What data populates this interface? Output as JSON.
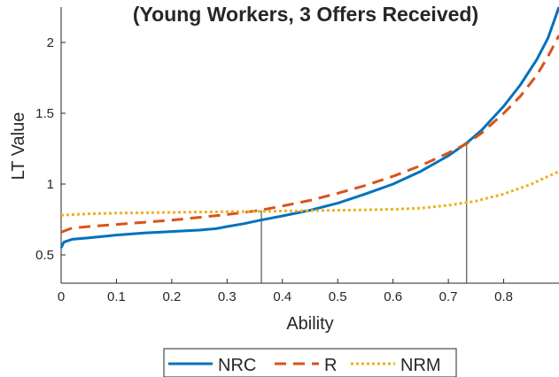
{
  "chart_data": {
    "type": "line",
    "title": "(Young Workers, 3 Offers Received)",
    "xlabel": "Ability",
    "ylabel": "LT Value",
    "xlim": [
      0,
      0.9
    ],
    "ylim": [
      0.3,
      2.25
    ],
    "xticks": [
      0,
      0.1,
      0.2,
      0.3,
      0.4,
      0.5,
      0.6,
      0.7,
      0.8
    ],
    "xtick_labels": [
      "0",
      "0.1",
      "0.2",
      "0.3",
      "0.4",
      "0.5",
      "0.6",
      "0.7",
      "0.8"
    ],
    "yticks": [
      0.5,
      1,
      1.5,
      2
    ],
    "ytick_labels": [
      "0.5",
      "1",
      "1.5",
      "2"
    ],
    "grid": false,
    "legend_position": "bottom",
    "series": [
      {
        "name": "NRC",
        "color": "#0072BD",
        "style": "solid",
        "x": [
          0,
          0.005,
          0.02,
          0.05,
          0.1,
          0.15,
          0.2,
          0.25,
          0.28,
          0.3,
          0.33,
          0.36,
          0.4,
          0.45,
          0.5,
          0.55,
          0.6,
          0.65,
          0.7,
          0.733,
          0.76,
          0.8,
          0.83,
          0.86,
          0.88,
          0.9
        ],
        "y": [
          0.55,
          0.59,
          0.61,
          0.62,
          0.64,
          0.655,
          0.665,
          0.675,
          0.685,
          0.7,
          0.72,
          0.745,
          0.775,
          0.815,
          0.865,
          0.93,
          1.0,
          1.09,
          1.2,
          1.29,
          1.38,
          1.55,
          1.7,
          1.88,
          2.03,
          2.25
        ]
      },
      {
        "name": "R",
        "color": "#D95319",
        "style": "dashed",
        "x": [
          0,
          0.02,
          0.05,
          0.1,
          0.15,
          0.2,
          0.25,
          0.3,
          0.36,
          0.4,
          0.45,
          0.5,
          0.55,
          0.6,
          0.65,
          0.7,
          0.733,
          0.76,
          0.8,
          0.83,
          0.86,
          0.88,
          0.9
        ],
        "y": [
          0.66,
          0.69,
          0.7,
          0.715,
          0.73,
          0.745,
          0.765,
          0.785,
          0.815,
          0.845,
          0.885,
          0.935,
          0.99,
          1.055,
          1.13,
          1.22,
          1.285,
          1.36,
          1.5,
          1.62,
          1.77,
          1.9,
          2.05
        ]
      },
      {
        "name": "NRM",
        "color": "#EDB120",
        "style": "dotted",
        "x": [
          0,
          0.05,
          0.1,
          0.2,
          0.3,
          0.36,
          0.4,
          0.45,
          0.5,
          0.55,
          0.6,
          0.65,
          0.7,
          0.75,
          0.8,
          0.85,
          0.9
        ],
        "y": [
          0.78,
          0.79,
          0.795,
          0.8,
          0.805,
          0.807,
          0.81,
          0.812,
          0.815,
          0.818,
          0.822,
          0.83,
          0.85,
          0.88,
          0.93,
          1.0,
          1.09
        ]
      }
    ],
    "annotations": [
      {
        "type": "vline",
        "x": 0.362,
        "y_to": 0.815,
        "color": "#555555"
      },
      {
        "type": "vline",
        "x": 0.733,
        "y_to": 1.29,
        "color": "#555555"
      }
    ]
  }
}
